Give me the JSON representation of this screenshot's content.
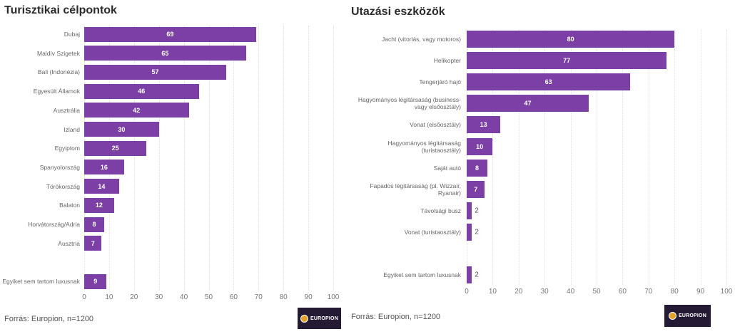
{
  "chart_data": [
    {
      "type": "bar",
      "orientation": "horizontal",
      "title": "Turisztikai célpontok",
      "categories": [
        "Dubaj",
        "Maldív Szigetek",
        "Bali (Indonézia)",
        "Egyesült Államok",
        "Ausztrália",
        "Izland",
        "Egyiptom",
        "Spanyolország",
        "Törökország",
        "Balaton",
        "Horvátország/Adria",
        "Ausztria",
        "",
        "Egyiket sem tartom luxusnak"
      ],
      "values": [
        69,
        65,
        57,
        46,
        42,
        30,
        25,
        16,
        14,
        12,
        8,
        7,
        null,
        9
      ],
      "xlim": [
        0,
        100
      ],
      "xticks": [
        "0",
        "10",
        "20",
        "30",
        "40",
        "50",
        "60",
        "70",
        "80",
        "90",
        "100"
      ],
      "grid": true,
      "bar_color": "#7b3fa6",
      "source": "Forrás: Europion, n=1200",
      "logo": "EUROPION"
    },
    {
      "type": "bar",
      "orientation": "horizontal",
      "title": "Utazási eszközök",
      "categories": [
        "Jacht (vitorlás, vagy motoros)",
        "Helikopter",
        "Tengerjáró hajó",
        "Hagyományos légitársaság (business- vagy elsőosztály)",
        "Vonat (elsőosztály)",
        "Hagyományos légitársaság (turistaosztály)",
        "Saját autó",
        "Fapados légitársaság (pl. Wizzair, Ryanair)",
        "Távolsági busz",
        "Vonat (turistaosztály)",
        "",
        "Egyiket sem tartom luxusnak"
      ],
      "values": [
        80,
        77,
        63,
        47,
        13,
        10,
        8,
        7,
        2,
        2,
        null,
        2
      ],
      "xlim": [
        0,
        100
      ],
      "xticks": [
        "0",
        "10",
        "20",
        "30",
        "40",
        "50",
        "60",
        "70",
        "80",
        "90",
        "100"
      ],
      "grid": true,
      "bar_color": "#7b3fa6",
      "source": "Forrás: Europion, n=1200",
      "logo": "EUROPION"
    }
  ]
}
